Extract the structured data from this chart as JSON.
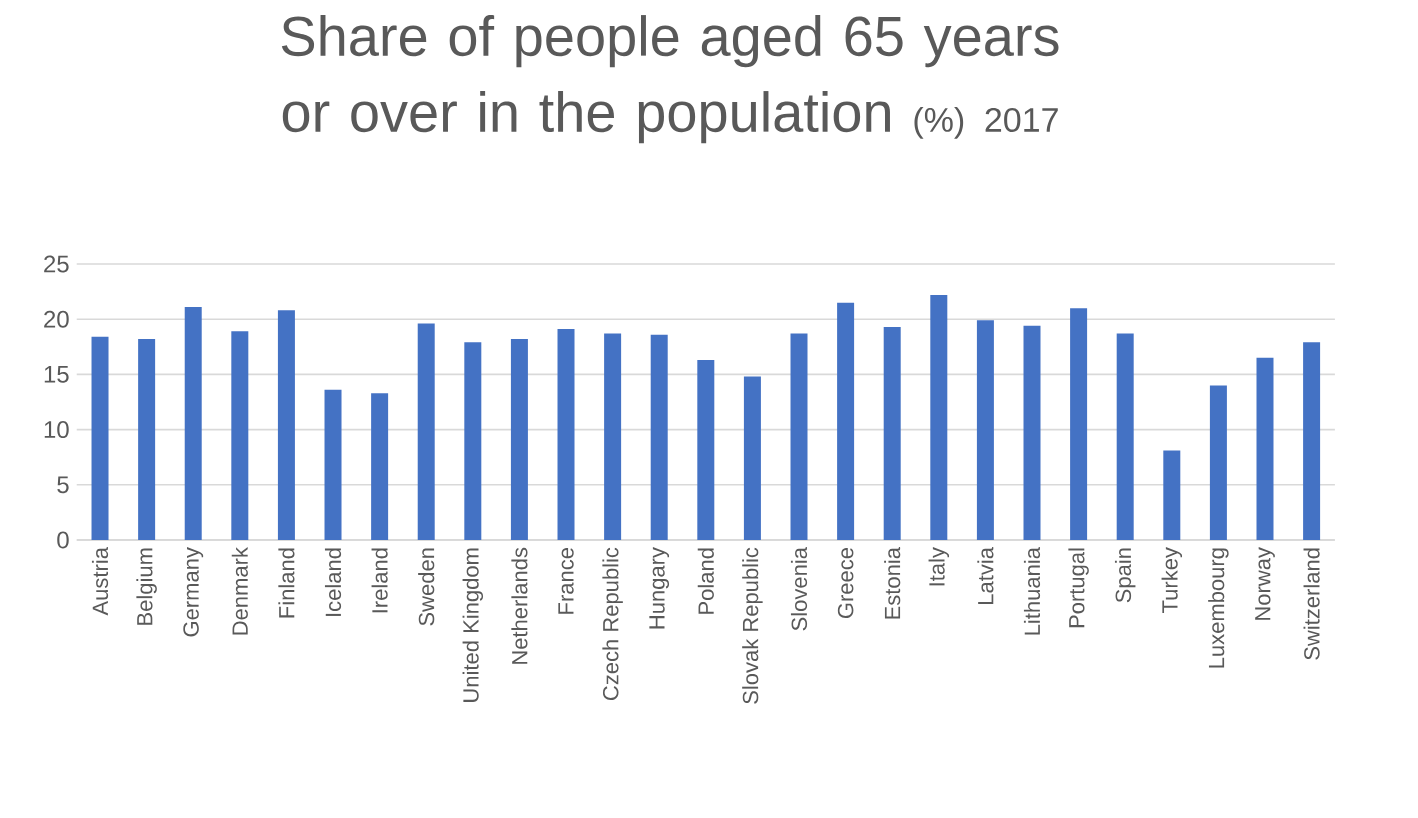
{
  "chart_data": {
    "type": "bar",
    "title": "Share of people aged 65 years or over in the population",
    "subtitle": "(%)  2017",
    "categories": [
      "Austria",
      "Belgium",
      "Germany",
      "Denmark",
      "Finland",
      "Iceland",
      "Ireland",
      "Sweden",
      "United Kingdom",
      "Netherlands",
      "France",
      "Czech Republic",
      "Hungary",
      "Poland",
      "Slovak Republic",
      "Slovenia",
      "Greece",
      "Estonia",
      "Italy",
      "Latvia",
      "Lithuania",
      "Portugal",
      "Spain",
      "Turkey",
      "Luxembourg",
      "Norway",
      "Switzerland"
    ],
    "values": [
      18.4,
      18.2,
      21.1,
      18.9,
      20.8,
      13.6,
      13.3,
      19.6,
      17.9,
      18.2,
      19.1,
      18.7,
      18.6,
      16.3,
      14.8,
      18.7,
      21.5,
      19.3,
      22.2,
      19.9,
      19.4,
      21.0,
      18.7,
      8.1,
      14.0,
      16.5,
      17.9
    ],
    "color": "#4472c4",
    "ylim": [
      0,
      25
    ],
    "yticks": [
      0,
      5,
      10,
      15,
      20,
      25
    ],
    "grid": "y"
  }
}
